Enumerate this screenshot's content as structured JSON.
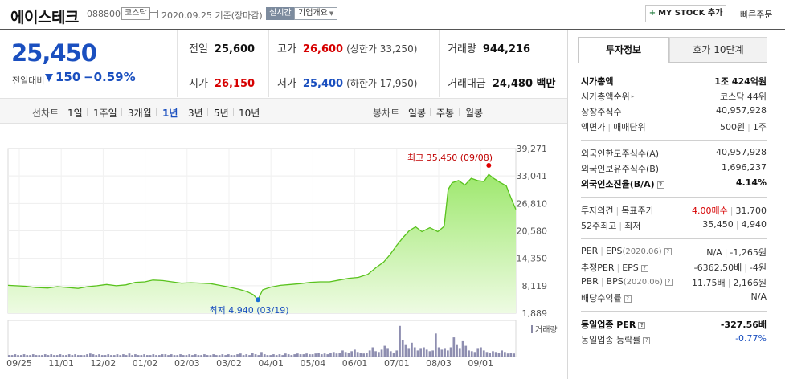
{
  "header": {
    "stock_name": "에이스테크",
    "code": "088800",
    "market": "코스닥",
    "date_text": "2020.09.25 기준(장마감)",
    "realtime_label": "실시간",
    "company_overview_label": "기업개요",
    "mystock_plus": "+",
    "mystock_label": "MY STOCK 추가",
    "quick_order_label": "빠른주문"
  },
  "summary": {
    "price": "25,450",
    "change_label": "전일대비",
    "change_value": "150",
    "change_percent": "−0.59%",
    "direction": "down",
    "prev_close_label": "전일",
    "prev_close": "25,600",
    "high_label": "고가",
    "high": "26,600",
    "upper_limit": "(상한가 33,250)",
    "volume_label": "거래량",
    "volume": "944,216",
    "open_label": "시가",
    "open": "26,150",
    "low_label": "저가",
    "low": "25,400",
    "lower_limit": "(하한가 17,950)",
    "turnover_label": "거래대금",
    "turnover": "24,480 백만"
  },
  "toolbar": {
    "line_chart_label": "선차트",
    "periods": [
      "1일",
      "1주일",
      "3개월",
      "1년",
      "3년",
      "5년",
      "10년"
    ],
    "active_period": "1년",
    "candle_chart_label": "봉차트",
    "candles": [
      "일봉",
      "주봉",
      "월봉"
    ]
  },
  "chart_data": {
    "type": "area",
    "y_ticks": [
      "39,271",
      "33,041",
      "26,810",
      "20,580",
      "14,350",
      "8,119",
      "1,889"
    ],
    "ylim": [
      1889,
      39271
    ],
    "x_ticks": [
      "09/25",
      "11/01",
      "12/02",
      "01/02",
      "02/03",
      "03/02",
      "04/01",
      "05/04",
      "06/01",
      "07/01",
      "08/03",
      "09/01"
    ],
    "max_label": "최고 35,450 (09/08)",
    "min_label": "최저 4,940 (03/19)",
    "volume_label": "거래량",
    "price_series": [
      [
        0,
        8200
      ],
      [
        10,
        8100
      ],
      [
        22,
        8000
      ],
      [
        35,
        7700
      ],
      [
        50,
        7600
      ],
      [
        62,
        7900
      ],
      [
        75,
        7700
      ],
      [
        88,
        7500
      ],
      [
        100,
        7900
      ],
      [
        112,
        8100
      ],
      [
        124,
        8400
      ],
      [
        136,
        8100
      ],
      [
        148,
        8300
      ],
      [
        160,
        8900
      ],
      [
        172,
        9000
      ],
      [
        182,
        9400
      ],
      [
        194,
        9300
      ],
      [
        206,
        9000
      ],
      [
        218,
        8700
      ],
      [
        230,
        8800
      ],
      [
        242,
        8700
      ],
      [
        254,
        8600
      ],
      [
        266,
        8200
      ],
      [
        278,
        7800
      ],
      [
        290,
        7300
      ],
      [
        300,
        6800
      ],
      [
        308,
        6100
      ],
      [
        314,
        4940
      ],
      [
        320,
        7200
      ],
      [
        330,
        7800
      ],
      [
        342,
        8200
      ],
      [
        355,
        8400
      ],
      [
        368,
        8600
      ],
      [
        380,
        8900
      ],
      [
        392,
        9000
      ],
      [
        404,
        9000
      ],
      [
        416,
        9400
      ],
      [
        428,
        9800
      ],
      [
        440,
        10000
      ],
      [
        452,
        10700
      ],
      [
        462,
        12200
      ],
      [
        472,
        13500
      ],
      [
        480,
        15200
      ],
      [
        488,
        17200
      ],
      [
        496,
        19000
      ],
      [
        504,
        20600
      ],
      [
        512,
        21500
      ],
      [
        520,
        20400
      ],
      [
        530,
        21300
      ],
      [
        540,
        20400
      ],
      [
        548,
        21600
      ],
      [
        553,
        30000
      ],
      [
        558,
        31500
      ],
      [
        566,
        32000
      ],
      [
        574,
        31000
      ],
      [
        582,
        32500
      ],
      [
        590,
        32000
      ],
      [
        598,
        31800
      ],
      [
        604,
        33400
      ],
      [
        610,
        32500
      ],
      [
        618,
        31600
      ],
      [
        626,
        30800
      ],
      [
        632,
        28000
      ],
      [
        638,
        25450
      ]
    ],
    "volume_series": [
      2,
      2,
      3,
      2,
      2,
      3,
      2,
      2,
      3,
      2,
      2,
      2,
      3,
      2,
      3,
      2,
      2,
      3,
      2,
      2,
      3,
      2,
      3,
      2,
      2,
      2,
      3,
      4,
      3,
      2,
      3,
      2,
      2,
      3,
      2,
      2,
      3,
      2,
      3,
      2,
      4,
      2,
      3,
      2,
      2,
      3,
      2,
      2,
      3,
      2,
      2,
      3,
      3,
      2,
      3,
      2,
      2,
      3,
      2,
      2,
      3,
      2,
      3,
      2,
      2,
      3,
      2,
      2,
      3,
      2,
      2,
      3,
      2,
      3,
      2,
      2,
      3,
      4,
      2,
      3,
      2,
      5,
      3,
      2,
      6,
      3,
      2,
      2,
      3,
      2,
      3,
      2,
      4,
      3,
      2,
      3,
      4,
      3,
      3,
      4,
      3,
      3,
      4,
      5,
      3,
      4,
      3,
      5,
      6,
      4,
      5,
      8,
      6,
      5,
      7,
      9,
      6,
      5,
      4,
      5,
      8,
      12,
      7,
      6,
      9,
      14,
      10,
      7,
      5,
      8,
      40,
      22,
      15,
      10,
      18,
      12,
      8,
      10,
      12,
      9,
      7,
      8,
      30,
      12,
      9,
      10,
      8,
      12,
      25,
      15,
      10,
      20,
      14,
      8,
      7,
      6,
      10,
      12,
      8,
      6,
      5,
      7,
      6,
      5,
      8,
      6,
      4,
      5,
      4
    ]
  },
  "side": {
    "tab_active": "투자정보",
    "tab_other": "호가 10단계",
    "market_cap_label": "시가총액",
    "market_cap": "1조 424억원",
    "market_cap_rank_label": "시가총액순위",
    "market_cap_rank": "코스닥 44위",
    "shares_label": "상장주식수",
    "shares": "40,957,928",
    "par_label": "액면가",
    "trade_unit_label": "매매단위",
    "par_value": "500원",
    "trade_unit": "1주",
    "foreign_limit_label": "외국인한도주식수(A)",
    "foreign_limit": "40,957,928",
    "foreign_hold_label": "외국인보유주식수(B)",
    "foreign_hold": "1,696,237",
    "foreign_ratio_label": "외국인소진율(B/A)",
    "foreign_ratio": "4.14%",
    "opinion_label": "투자의견",
    "target_label": "목표주가",
    "opinion": "4.00매수",
    "target": "31,700",
    "w52_high_label": "52주최고",
    "w52_low_label": "최저",
    "w52_high": "35,450",
    "w52_low": "4,940",
    "per_label": "PER",
    "eps_label": "EPS",
    "eps_date": "(2020.06)",
    "per": "N/A",
    "eps": "-1,265원",
    "est_per_label": "추정PER",
    "est_eps_label": "EPS",
    "est_per": "-6362.50배",
    "est_eps": "-4원",
    "pbr_label": "PBR",
    "bps_label": "BPS",
    "bps_date": "(2020.06)",
    "pbr": "11.75배",
    "bps": "2,166원",
    "dividend_label": "배당수익률",
    "dividend": "N/A",
    "industry_per_label": "동일업종 PER",
    "industry_per": "-327.56배",
    "industry_rate_label": "동일업종 등락률",
    "industry_rate": "-0.77%"
  }
}
